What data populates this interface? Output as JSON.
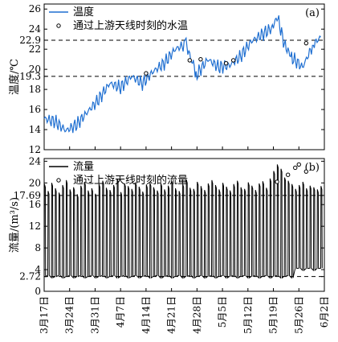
{
  "chart_data": [
    {
      "type": "line",
      "panel_label": "(a)",
      "ylabel": "温度/℃",
      "ylim": [
        12,
        26.5
      ],
      "yticks": [
        12,
        14,
        16,
        18,
        20,
        22,
        24,
        26
      ],
      "reference_lines": [
        {
          "value": 22.9,
          "label": "22.9",
          "style": "dashed"
        },
        {
          "value": 19.3,
          "label": "19.3",
          "style": "dashed"
        }
      ],
      "series": [
        {
          "name": "温度",
          "color": "#1f6fd1",
          "kind": "line",
          "x": [
            "2018-03-17",
            "2018-03-20",
            "2018-03-23",
            "2018-03-26",
            "2018-03-29",
            "2018-04-01",
            "2018-04-04",
            "2018-04-07",
            "2018-04-10",
            "2018-04-13",
            "2018-04-16",
            "2018-04-19",
            "2018-04-22",
            "2018-04-25",
            "2018-04-27",
            "2018-04-28",
            "2018-05-01",
            "2018-05-04",
            "2018-05-07",
            "2018-05-10",
            "2018-05-13",
            "2018-05-16",
            "2018-05-19",
            "2018-05-20",
            "2018-05-22",
            "2018-05-24",
            "2018-05-27",
            "2018-05-30",
            "2018-06-01"
          ],
          "y": [
            15.1,
            14.8,
            13.9,
            14.5,
            15.8,
            17.0,
            18.6,
            18.2,
            19.3,
            18.6,
            19.8,
            20.6,
            22.0,
            22.5,
            20.3,
            19.5,
            21.0,
            20.2,
            20.4,
            21.3,
            22.8,
            23.5,
            24.2,
            25.4,
            22.5,
            21.2,
            20.2,
            22.5,
            23.2
          ]
        },
        {
          "name": "通过上游天线时刻的水温",
          "color": "#000000",
          "kind": "markers",
          "x": [
            "2018-04-14",
            "2018-04-26",
            "2018-04-29",
            "2018-05-06",
            "2018-05-08",
            "2018-05-28"
          ],
          "y": [
            19.6,
            20.9,
            21.0,
            20.6,
            20.9,
            22.6
          ]
        }
      ]
    },
    {
      "type": "line",
      "panel_label": "(b)",
      "ylabel": "流量/(m³/s)",
      "ylim": [
        0,
        24.5
      ],
      "yticks": [
        0,
        2.72,
        4,
        8,
        12,
        16,
        17.69,
        20,
        24
      ],
      "ytick_labels": [
        "0",
        "2.72",
        "4",
        "8",
        "12",
        "16",
        "17.69",
        "20",
        "24"
      ],
      "reference_lines": [
        {
          "value": 17.69,
          "label": "17.69",
          "style": "dashed"
        },
        {
          "value": 2.72,
          "label": "2.72",
          "style": "dashed"
        }
      ],
      "series": [
        {
          "name": "流量",
          "color": "#000000",
          "kind": "line",
          "daily_pulses": true,
          "base_value": 2.72,
          "peak_values": [
            19.8,
            18.5,
            20.0,
            19.0,
            18.2,
            19.6,
            20.5,
            18.8,
            19.2,
            17.9,
            19.5,
            20.2,
            18.6,
            19.0,
            18.0,
            19.8,
            20.4,
            19.1,
            18.7,
            19.6,
            20.8,
            18.3,
            19.9,
            19.4,
            18.9,
            20.1,
            19.3,
            18.4,
            19.7,
            20.0,
            19.2,
            18.6,
            19.9,
            18.8,
            19.5,
            20.3,
            19.0,
            18.5,
            19.8,
            20.6,
            19.1,
            18.9,
            20.2,
            19.4,
            18.7,
            19.9,
            20.5,
            19.6,
            18.8,
            20.0,
            19.3,
            18.6,
            19.8,
            20.4,
            19.2,
            18.9,
            20.1,
            19.5,
            18.7,
            19.9,
            20.3,
            19.1,
            20.8,
            22.2,
            23.4,
            22.6,
            21.0,
            20.4,
            19.8,
            18.9,
            19.6,
            20.2,
            19.0,
            19.5,
            19.2,
            18.8,
            19.4
          ]
        },
        {
          "name": "通过上游天线时刻的流量",
          "color": "#000000",
          "kind": "markers",
          "x": [
            "2018-05-20",
            "2018-05-23",
            "2018-05-25",
            "2018-05-26",
            "2018-05-28"
          ],
          "y": [
            20.2,
            21.5,
            22.8,
            23.4,
            22.1
          ]
        }
      ]
    }
  ],
  "x_axis": {
    "start": "2018-03-17",
    "end": "2018-06-02",
    "tick_dates": [
      "2018-03-17",
      "2018-03-24",
      "2018-03-31",
      "2018-04-07",
      "2018-04-14",
      "2018-04-21",
      "2018-04-28",
      "2018-05-05",
      "2018-05-12",
      "2018-05-19",
      "2018-05-26",
      "2018-06-02"
    ],
    "tick_labels": [
      "3月17日",
      "3月24日",
      "3月31日",
      "4月7日",
      "4月14日",
      "4月21日",
      "4月28日",
      "5月5日",
      "5月12日",
      "5月19日",
      "5月26日",
      "6月2日"
    ]
  }
}
